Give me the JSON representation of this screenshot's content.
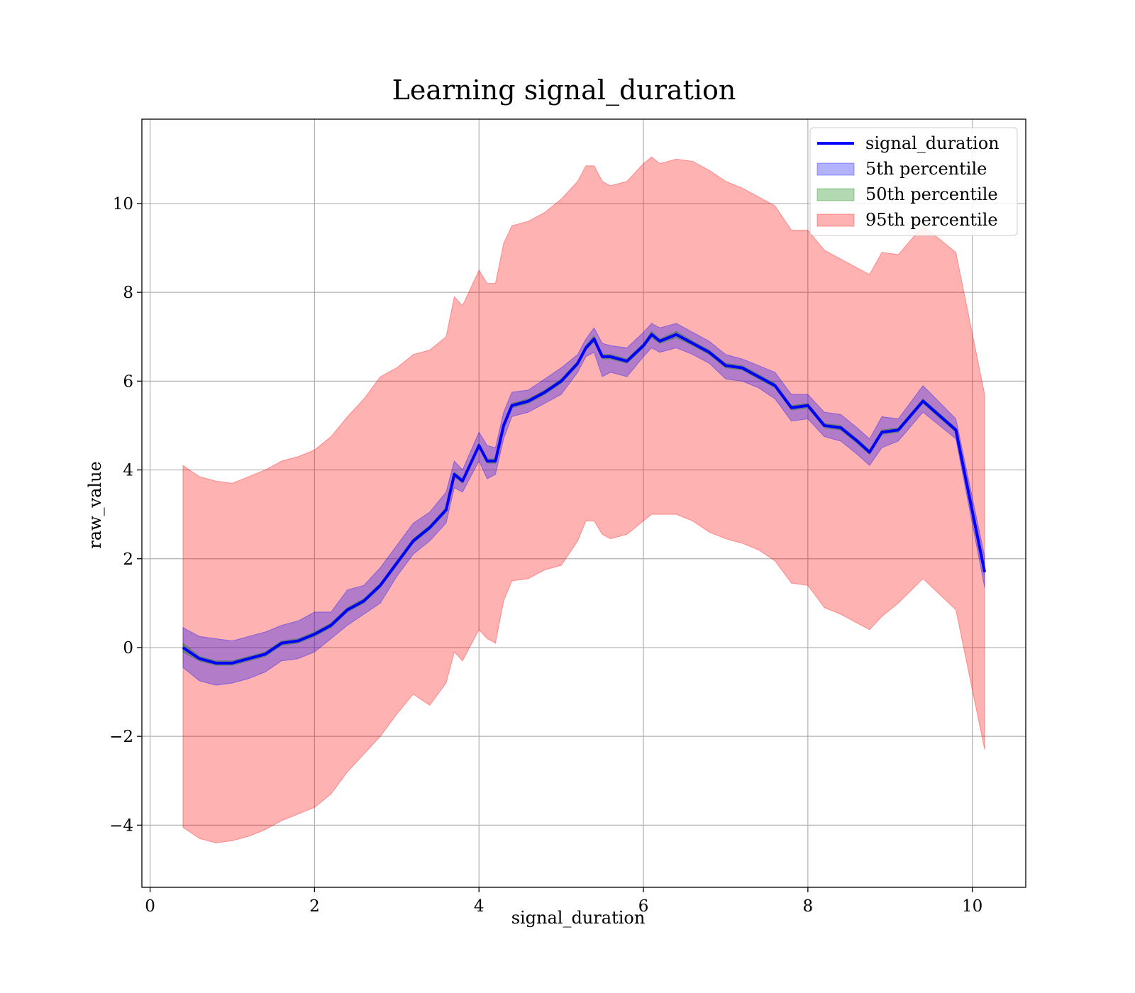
{
  "chart_data": {
    "type": "line",
    "title": "Learning signal_duration",
    "xlabel": "signal_duration",
    "ylabel": "raw_value",
    "xlim": [
      -0.1,
      10.65
    ],
    "ylim": [
      -5.4,
      11.9
    ],
    "xticks": [
      {
        "value": 0,
        "label": "0"
      },
      {
        "value": 2,
        "label": "2"
      },
      {
        "value": 4,
        "label": "4"
      },
      {
        "value": 6,
        "label": "6"
      },
      {
        "value": 8,
        "label": "8"
      },
      {
        "value": 10,
        "label": "10"
      }
    ],
    "yticks": [
      {
        "value": -4,
        "label": "−4"
      },
      {
        "value": -2,
        "label": "−2"
      },
      {
        "value": 0,
        "label": "0"
      },
      {
        "value": 2,
        "label": "2"
      },
      {
        "value": 4,
        "label": "4"
      },
      {
        "value": 6,
        "label": "6"
      },
      {
        "value": 8,
        "label": "8"
      },
      {
        "value": 10,
        "label": "10"
      }
    ],
    "grid": true,
    "legend_position": "top-right",
    "legend": [
      {
        "label": "signal_duration",
        "kind": "line",
        "color": "#0000ff"
      },
      {
        "label": "5th percentile",
        "kind": "patch",
        "color": "#0000ff"
      },
      {
        "label": "50th percentile",
        "kind": "patch",
        "color": "#008000"
      },
      {
        "label": "95th percentile",
        "kind": "patch",
        "color": "#ff0000"
      }
    ],
    "x": [
      0.4,
      0.6,
      0.8,
      1.0,
      1.2,
      1.4,
      1.6,
      1.8,
      2.0,
      2.2,
      2.4,
      2.6,
      2.8,
      3.0,
      3.2,
      3.4,
      3.6,
      3.7,
      3.8,
      4.0,
      4.1,
      4.2,
      4.3,
      4.4,
      4.6,
      4.8,
      5.0,
      5.2,
      5.3,
      5.4,
      5.5,
      5.6,
      5.8,
      6.0,
      6.1,
      6.2,
      6.4,
      6.6,
      6.8,
      7.0,
      7.2,
      7.4,
      7.6,
      7.8,
      8.0,
      8.2,
      8.4,
      8.6,
      8.75,
      8.9,
      9.1,
      9.4,
      9.8,
      10.15
    ],
    "series": [
      {
        "name": "signal_duration",
        "color": "#0000ff",
        "values": [
          0.0,
          -0.25,
          -0.35,
          -0.35,
          -0.25,
          -0.15,
          0.1,
          0.15,
          0.3,
          0.5,
          0.85,
          1.05,
          1.4,
          1.9,
          2.4,
          2.7,
          3.1,
          3.9,
          3.75,
          4.55,
          4.2,
          4.2,
          5.0,
          5.45,
          5.55,
          5.75,
          6.0,
          6.4,
          6.75,
          6.95,
          6.55,
          6.55,
          6.45,
          6.8,
          7.05,
          6.9,
          7.05,
          6.85,
          6.65,
          6.35,
          6.3,
          6.1,
          5.9,
          5.4,
          5.45,
          5.0,
          4.95,
          4.65,
          4.4,
          4.85,
          4.9,
          5.55,
          4.9,
          1.7
        ]
      },
      {
        "name": "5th percentile",
        "color": "#0000ff",
        "lower": [
          -0.45,
          -0.75,
          -0.85,
          -0.8,
          -0.7,
          -0.55,
          -0.3,
          -0.25,
          -0.1,
          0.2,
          0.5,
          0.75,
          1.0,
          1.6,
          2.1,
          2.4,
          2.8,
          3.6,
          3.5,
          4.2,
          3.8,
          3.9,
          4.7,
          5.2,
          5.3,
          5.5,
          5.7,
          6.2,
          6.55,
          6.65,
          6.1,
          6.2,
          6.1,
          6.55,
          6.75,
          6.65,
          6.75,
          6.6,
          6.4,
          6.05,
          6.0,
          5.85,
          5.6,
          5.1,
          5.15,
          4.75,
          4.65,
          4.35,
          4.1,
          4.5,
          4.65,
          5.3,
          4.7,
          1.35
        ],
        "upper": [
          0.45,
          0.25,
          0.2,
          0.15,
          0.25,
          0.35,
          0.5,
          0.6,
          0.8,
          0.8,
          1.3,
          1.4,
          1.8,
          2.3,
          2.8,
          3.05,
          3.5,
          4.2,
          4.0,
          4.85,
          4.55,
          4.5,
          5.3,
          5.75,
          5.8,
          6.05,
          6.3,
          6.6,
          6.95,
          7.2,
          6.85,
          6.8,
          6.75,
          7.1,
          7.3,
          7.2,
          7.3,
          7.1,
          6.9,
          6.6,
          6.5,
          6.35,
          6.2,
          5.7,
          5.7,
          5.3,
          5.25,
          4.95,
          4.7,
          5.2,
          5.15,
          5.9,
          5.15,
          2.05
        ]
      },
      {
        "name": "50th percentile",
        "color": "#008000",
        "lower": [
          -0.1,
          -0.3,
          -0.4,
          -0.4,
          -0.3,
          -0.2,
          0.05,
          0.1,
          0.25,
          0.45,
          0.8,
          1.0,
          1.35,
          1.85,
          2.35,
          2.65,
          3.05,
          3.85,
          3.7,
          4.5,
          4.15,
          4.15,
          4.95,
          5.4,
          5.5,
          5.7,
          5.95,
          6.35,
          6.7,
          6.88,
          6.5,
          6.5,
          6.4,
          6.75,
          6.98,
          6.85,
          6.98,
          6.8,
          6.6,
          6.3,
          6.25,
          6.05,
          5.85,
          5.35,
          5.4,
          4.95,
          4.9,
          4.6,
          4.35,
          4.8,
          4.85,
          5.5,
          4.85,
          1.65
        ],
        "upper": [
          0.1,
          -0.2,
          -0.3,
          -0.3,
          -0.2,
          -0.1,
          0.15,
          0.2,
          0.35,
          0.55,
          0.9,
          1.1,
          1.45,
          1.95,
          2.45,
          2.75,
          3.15,
          3.95,
          3.8,
          4.6,
          4.25,
          4.25,
          5.05,
          5.5,
          5.6,
          5.8,
          6.05,
          6.45,
          6.8,
          7.02,
          6.6,
          6.6,
          6.5,
          6.85,
          7.12,
          6.95,
          7.12,
          6.9,
          6.7,
          6.4,
          6.35,
          6.15,
          5.95,
          5.45,
          5.5,
          5.05,
          5.0,
          4.7,
          4.45,
          4.9,
          4.95,
          5.6,
          4.95,
          1.75
        ]
      },
      {
        "name": "95th percentile",
        "color": "#ff0000",
        "lower": [
          -4.05,
          -4.3,
          -4.4,
          -4.35,
          -4.25,
          -4.1,
          -3.9,
          -3.75,
          -3.6,
          -3.3,
          -2.8,
          -2.4,
          -2.0,
          -1.5,
          -1.05,
          -1.3,
          -0.8,
          -0.1,
          -0.3,
          0.4,
          0.2,
          0.1,
          1.05,
          1.5,
          1.55,
          1.75,
          1.85,
          2.4,
          2.85,
          2.85,
          2.55,
          2.45,
          2.55,
          2.85,
          3.0,
          3.0,
          3.0,
          2.85,
          2.6,
          2.45,
          2.35,
          2.2,
          1.95,
          1.45,
          1.4,
          0.9,
          0.75,
          0.55,
          0.4,
          0.7,
          1.0,
          1.55,
          0.85,
          -2.3
        ],
        "upper": [
          4.1,
          3.85,
          3.75,
          3.7,
          3.85,
          4.0,
          4.2,
          4.3,
          4.45,
          4.75,
          5.2,
          5.6,
          6.1,
          6.3,
          6.6,
          6.7,
          7.0,
          7.9,
          7.7,
          8.5,
          8.2,
          8.2,
          9.1,
          9.5,
          9.6,
          9.8,
          10.1,
          10.5,
          10.85,
          10.85,
          10.5,
          10.4,
          10.5,
          10.9,
          11.05,
          10.9,
          11.0,
          10.95,
          10.75,
          10.5,
          10.35,
          10.15,
          9.95,
          9.4,
          9.4,
          8.95,
          8.75,
          8.55,
          8.4,
          8.9,
          8.85,
          9.5,
          8.9,
          5.7
        ]
      }
    ]
  }
}
